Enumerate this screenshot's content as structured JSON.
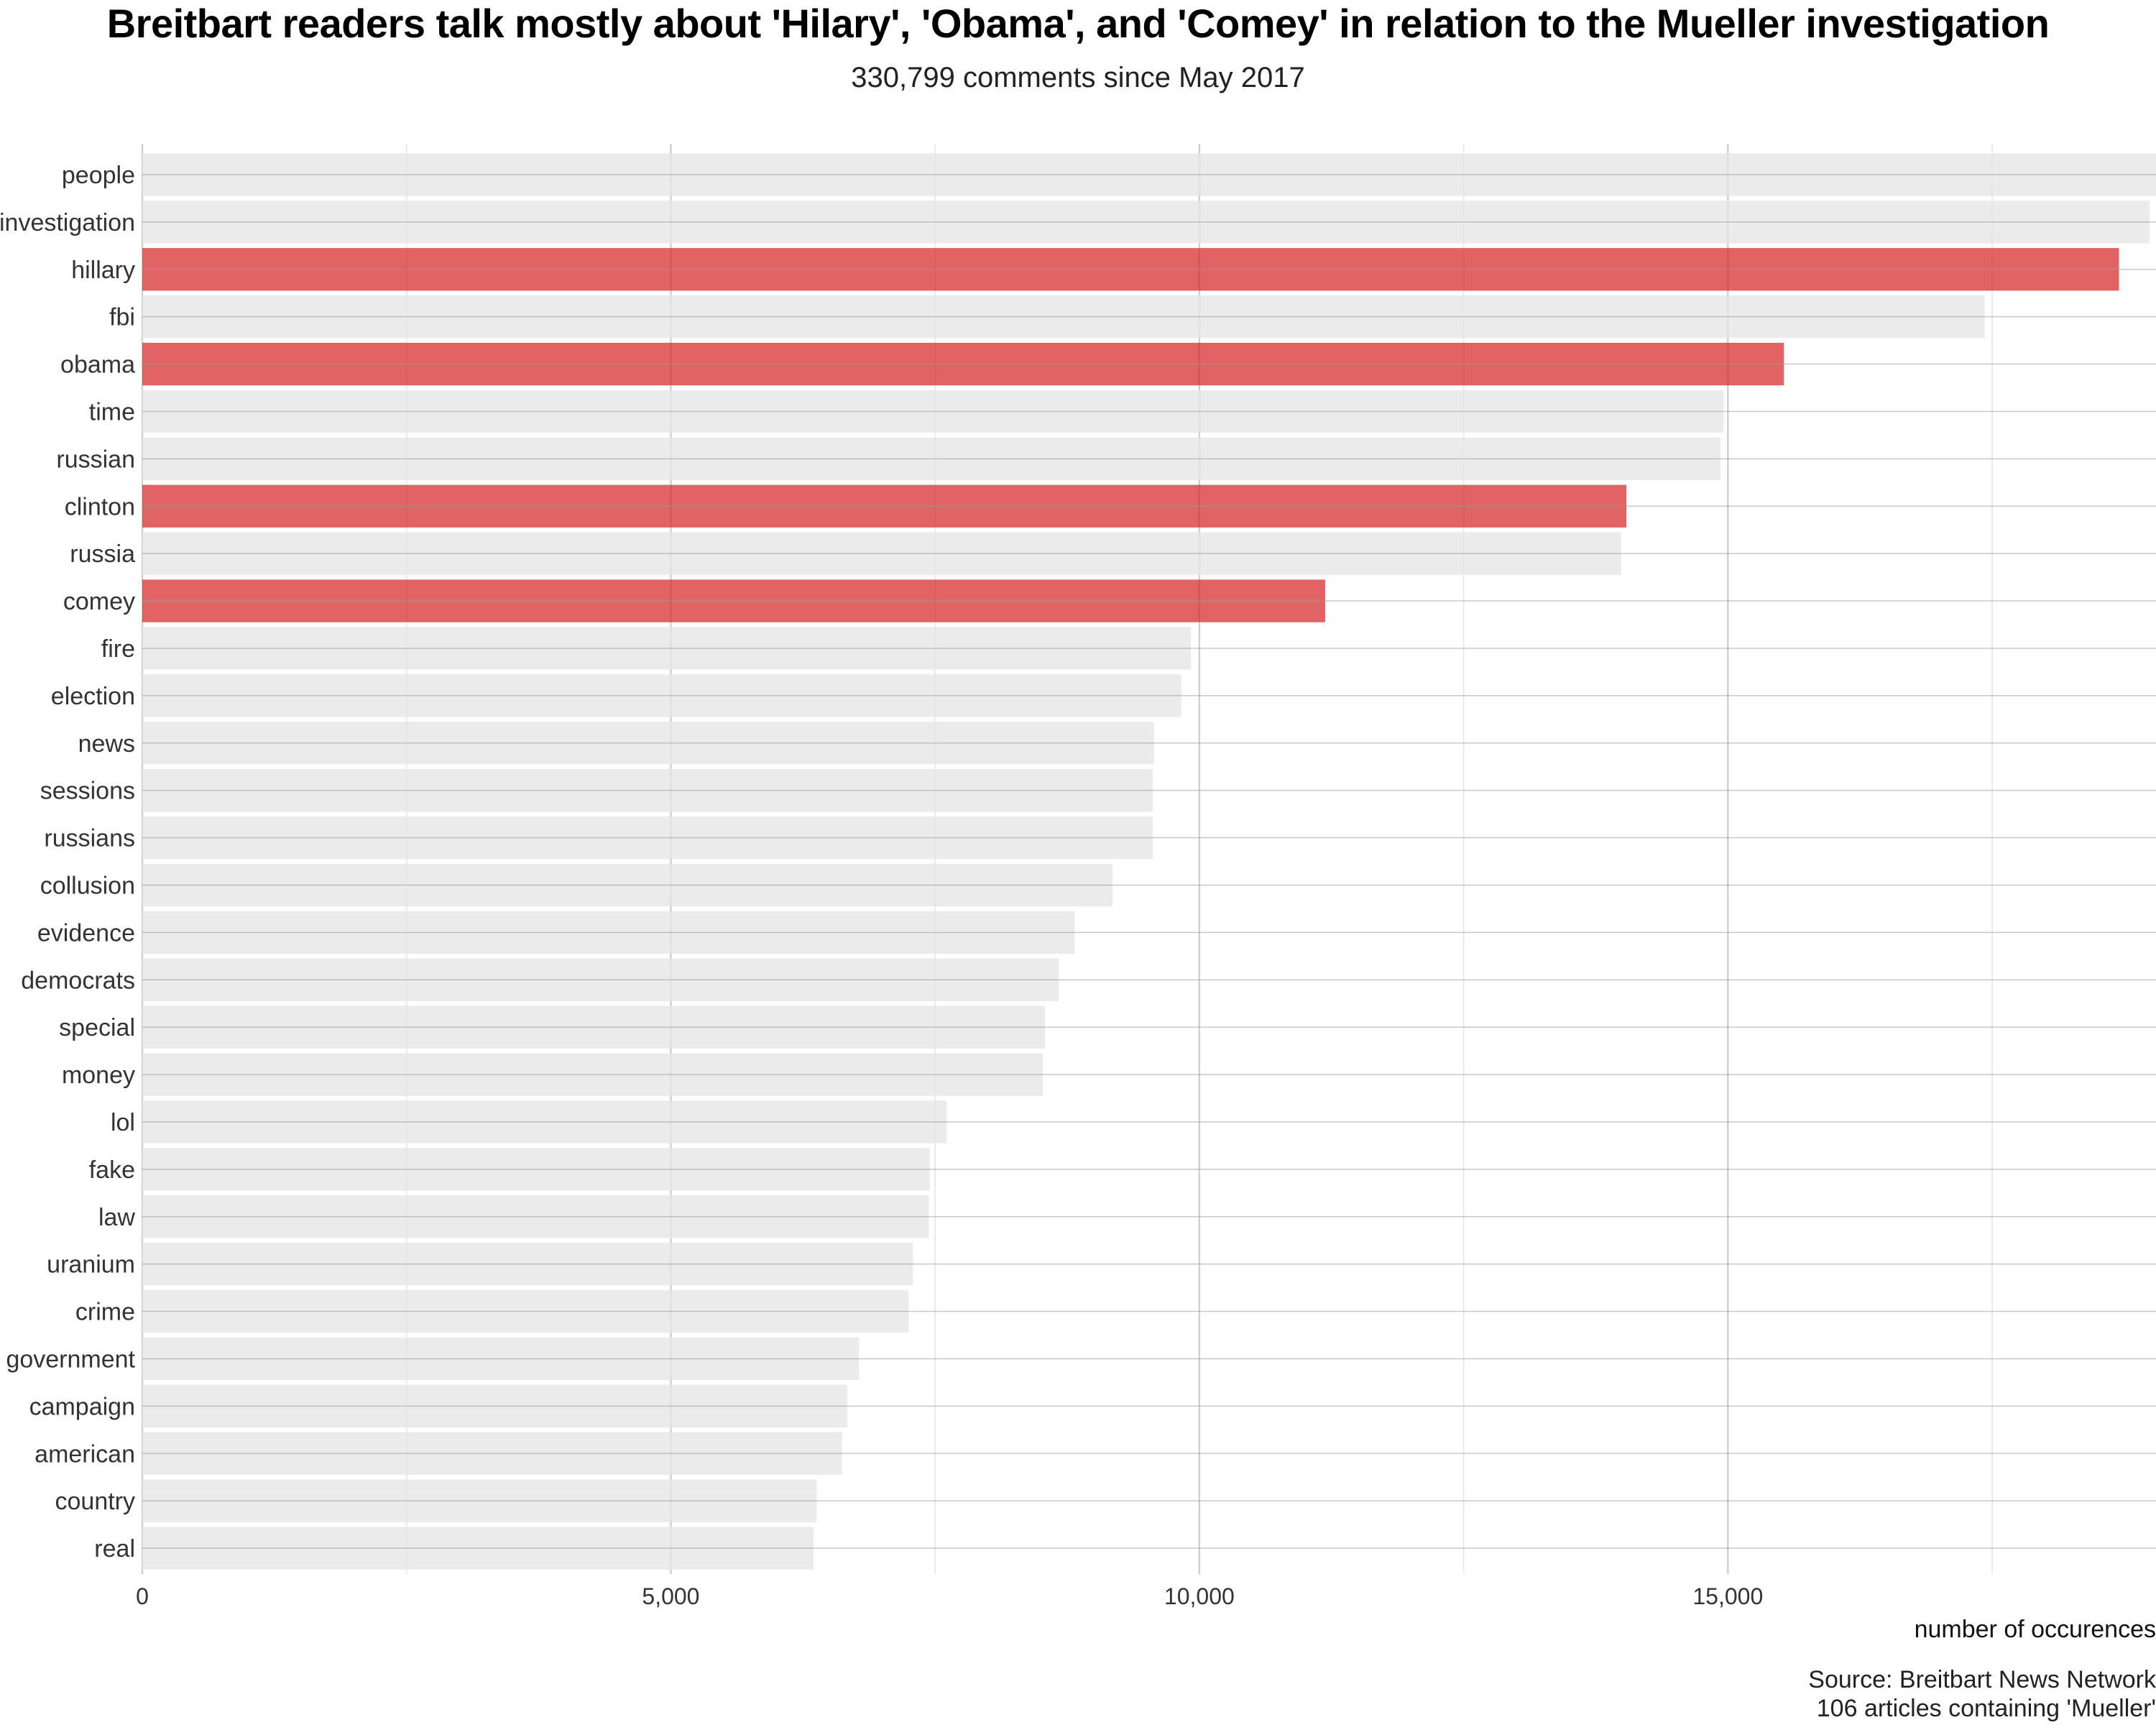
{
  "chart_data": {
    "type": "bar",
    "orientation": "horizontal",
    "title": "Breitbart readers talk mostly about 'Hilary', 'Obama', and 'Comey' in relation to the Mueller investigation",
    "subtitle": "330,799 comments since May 2017",
    "xlabel": "number of occurences",
    "ylabel": "",
    "xlim": [
      0,
      19050
    ],
    "x_ticks": [
      0,
      5000,
      10000,
      15000
    ],
    "x_tick_labels": [
      "0",
      "5,000",
      "10,000",
      "15,000"
    ],
    "grid": true,
    "legend": "none",
    "categories": [
      "people",
      "investigation",
      "hillary",
      "fbi",
      "obama",
      "time",
      "russian",
      "clinton",
      "russia",
      "comey",
      "fire",
      "election",
      "news",
      "sessions",
      "russians",
      "collusion",
      "evidence",
      "democrats",
      "special",
      "money",
      "lol",
      "fake",
      "law",
      "uranium",
      "crime",
      "government",
      "campaign",
      "american",
      "country",
      "real"
    ],
    "values": [
      19100,
      18990,
      18700,
      17430,
      15530,
      14960,
      14930,
      14040,
      13990,
      11190,
      9920,
      9830,
      9570,
      9560,
      9560,
      9180,
      8820,
      8670,
      8540,
      8520,
      7610,
      7450,
      7440,
      7290,
      7250,
      6780,
      6670,
      6620,
      6380,
      6350
    ],
    "highlighted": [
      "hillary",
      "obama",
      "clinton",
      "comey"
    ],
    "colors": {
      "highlight": "#d62728",
      "default": "#e6e6e6"
    }
  },
  "captions": {
    "source": "Source: Breitbart News Network",
    "articles": "106 articles containing 'Mueller'"
  }
}
